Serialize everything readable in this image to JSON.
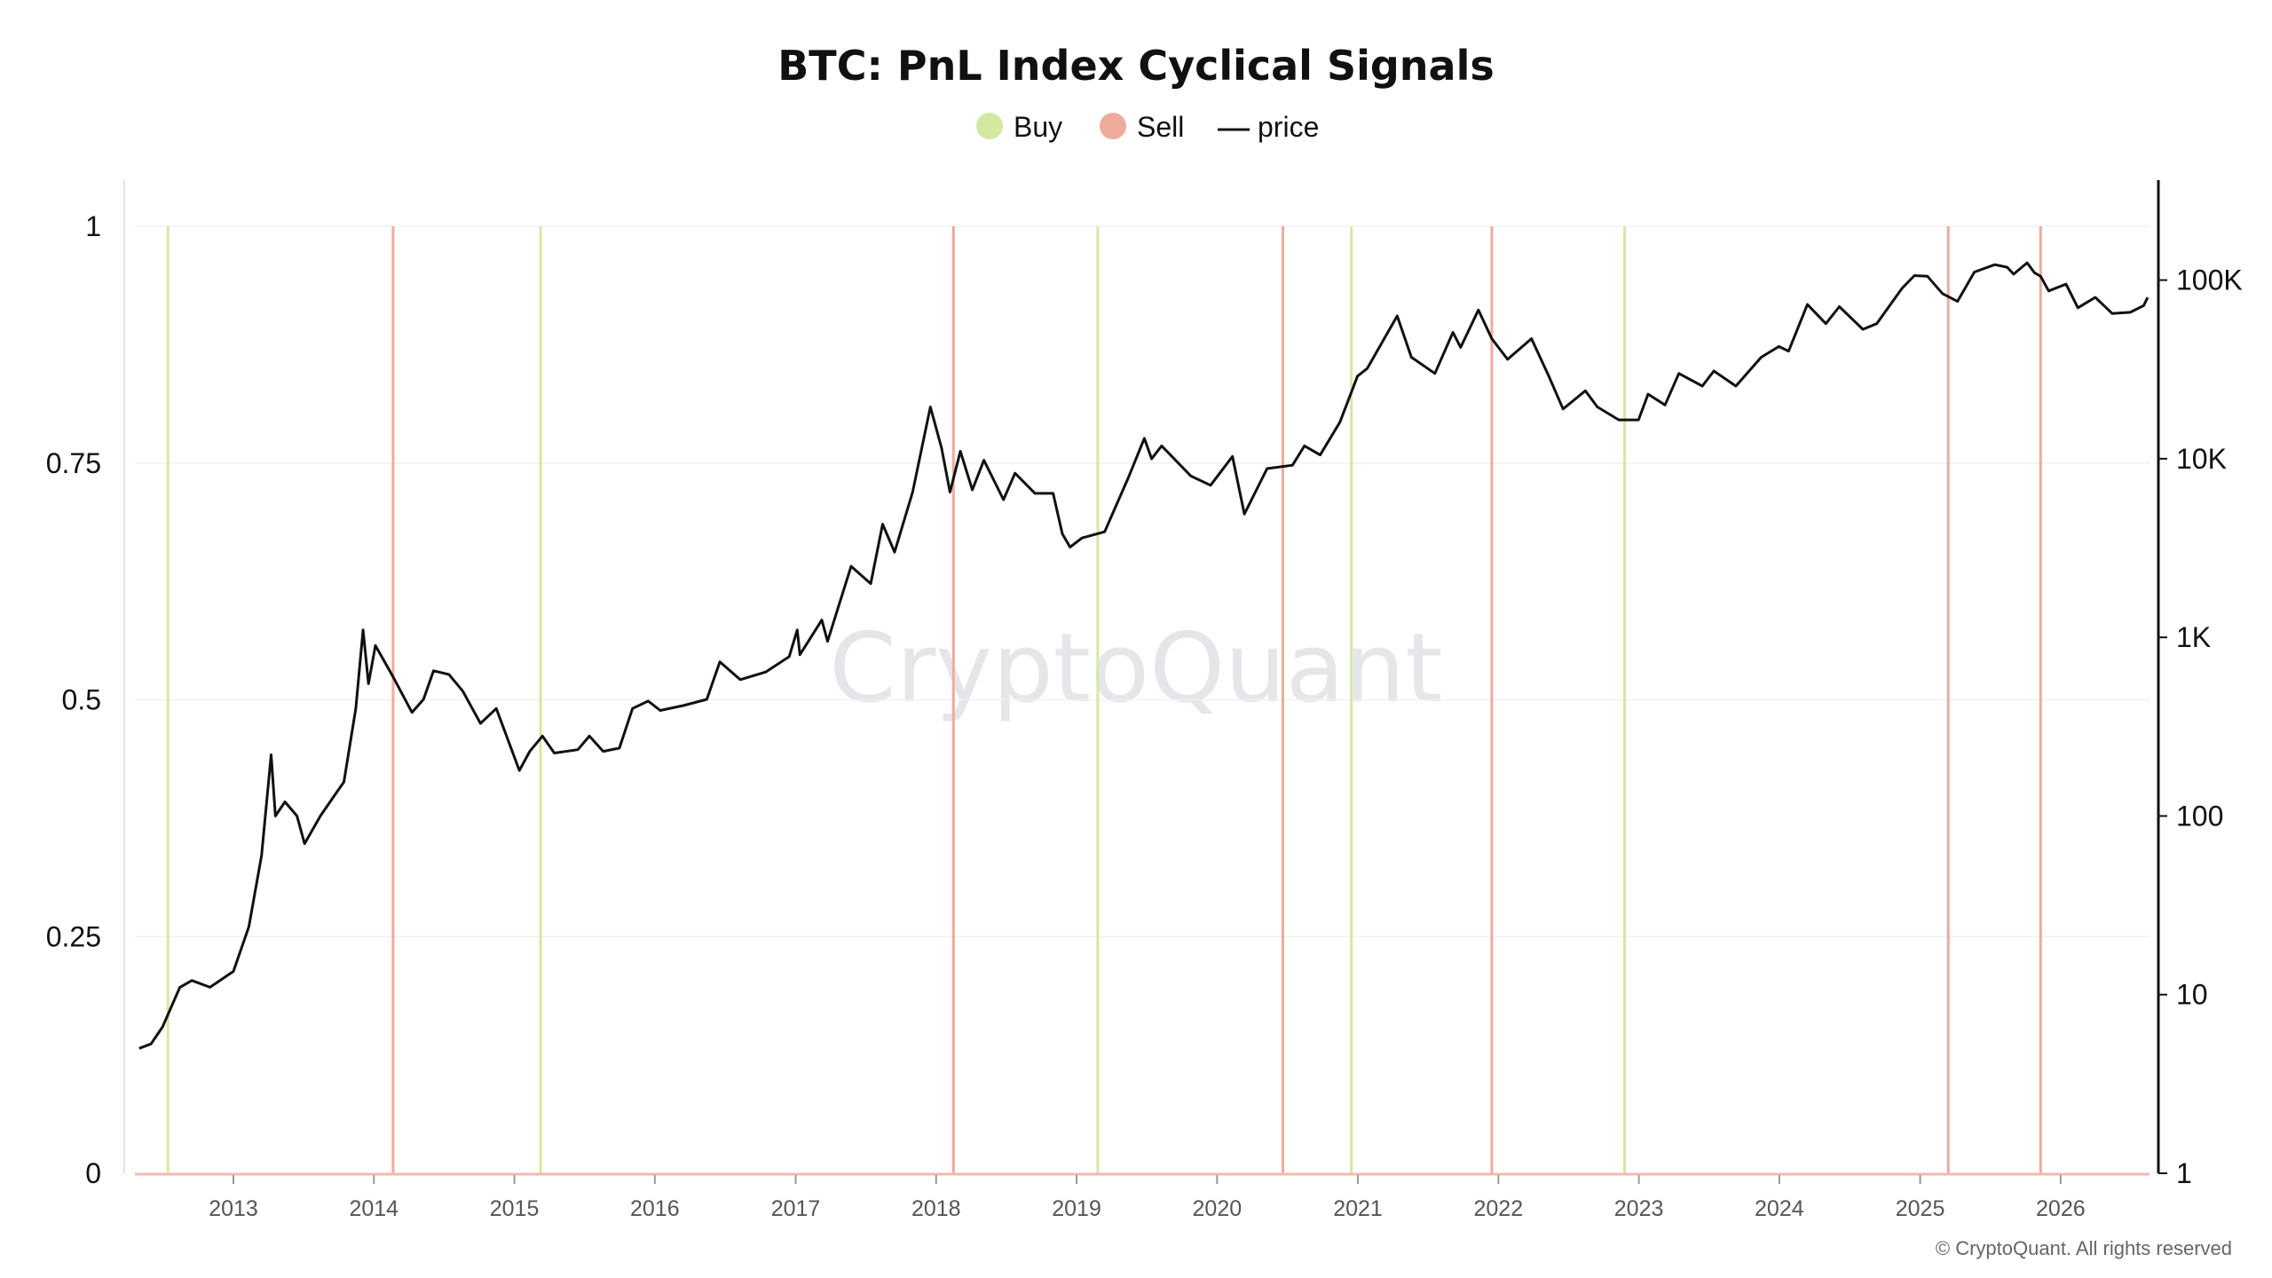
{
  "chart_data": {
    "type": "line",
    "title": "BTC: PnL Index Cyclical Signals",
    "watermark": "CryptoQuant",
    "copyright": "© CryptoQuant. All rights reserved",
    "legend": [
      {
        "key": "buy",
        "label": "Buy",
        "marker": "dot",
        "color": "#d4e8a2"
      },
      {
        "key": "sell",
        "label": "Sell",
        "marker": "dot",
        "color": "#f0aa9c"
      },
      {
        "key": "price",
        "label": "price",
        "marker": "line",
        "color": "#111111"
      }
    ],
    "legend_position": "top-center",
    "grid": true,
    "x_range": [
      "2012-04-20",
      "2026-08-20"
    ],
    "x_ticks": [
      "2013",
      "2014",
      "2015",
      "2016",
      "2017",
      "2018",
      "2019",
      "2020",
      "2021",
      "2022",
      "2023",
      "2024",
      "2025",
      "2026"
    ],
    "y_left": {
      "range": [
        0,
        1
      ],
      "ticks": [
        "1",
        "0.75",
        "0.5",
        "0.25",
        "0"
      ],
      "tick_values": [
        1,
        0.75,
        0.5,
        0.25,
        0
      ]
    },
    "y_right": {
      "scale": "log",
      "range": [
        1,
        200000
      ],
      "ticks": [
        "100K",
        "10K",
        "1K",
        "100",
        "10",
        "1"
      ],
      "tick_values": [
        100000,
        10000,
        1000,
        100,
        10,
        1
      ]
    },
    "buy_signals": [
      "2012-07-15",
      "2015-03-10",
      "2019-02-25",
      "2020-12-15",
      "2022-11-25"
    ],
    "sell_signals": [
      "2014-02-20",
      "2018-02-15",
      "2020-06-20",
      "2021-12-15",
      "2025-03-15",
      "2025-11-10"
    ],
    "series": [
      {
        "name": "price",
        "color": "#111111",
        "points": [
          [
            "2012-05-01",
            5
          ],
          [
            "2012-06-01",
            5.3
          ],
          [
            "2012-07-01",
            6.6
          ],
          [
            "2012-08-15",
            11
          ],
          [
            "2012-09-15",
            12
          ],
          [
            "2012-11-01",
            11
          ],
          [
            "2013-01-01",
            13.5
          ],
          [
            "2013-02-10",
            24
          ],
          [
            "2013-03-15",
            60
          ],
          [
            "2013-04-09",
            220
          ],
          [
            "2013-04-20",
            100
          ],
          [
            "2013-05-15",
            120
          ],
          [
            "2013-06-15",
            100
          ],
          [
            "2013-07-05",
            70
          ],
          [
            "2013-08-15",
            100
          ],
          [
            "2013-09-15",
            125
          ],
          [
            "2013-10-15",
            155
          ],
          [
            "2013-11-15",
            400
          ],
          [
            "2013-12-04",
            1100
          ],
          [
            "2013-12-18",
            550
          ],
          [
            "2014-01-05",
            900
          ],
          [
            "2014-02-20",
            600
          ],
          [
            "2014-04-10",
            380
          ],
          [
            "2014-05-10",
            450
          ],
          [
            "2014-06-05",
            650
          ],
          [
            "2014-07-15",
            620
          ],
          [
            "2014-08-20",
            500
          ],
          [
            "2014-10-05",
            330
          ],
          [
            "2014-11-15",
            400
          ],
          [
            "2015-01-14",
            180
          ],
          [
            "2015-02-10",
            230
          ],
          [
            "2015-03-15",
            280
          ],
          [
            "2015-04-15",
            225
          ],
          [
            "2015-06-15",
            235
          ],
          [
            "2015-07-15",
            280
          ],
          [
            "2015-08-20",
            230
          ],
          [
            "2015-10-01",
            240
          ],
          [
            "2015-11-04",
            400
          ],
          [
            "2015-12-15",
            440
          ],
          [
            "2016-01-15",
            390
          ],
          [
            "2016-03-15",
            415
          ],
          [
            "2016-05-15",
            450
          ],
          [
            "2016-06-18",
            730
          ],
          [
            "2016-08-10",
            580
          ],
          [
            "2016-10-15",
            640
          ],
          [
            "2016-12-15",
            780
          ],
          [
            "2017-01-05",
            1100
          ],
          [
            "2017-01-12",
            800
          ],
          [
            "2017-03-10",
            1250
          ],
          [
            "2017-03-25",
            950
          ],
          [
            "2017-05-25",
            2500
          ],
          [
            "2017-07-15",
            2000
          ],
          [
            "2017-08-15",
            4300
          ],
          [
            "2017-09-15",
            3000
          ],
          [
            "2017-11-01",
            6500
          ],
          [
            "2017-12-17",
            19500
          ],
          [
            "2018-01-15",
            11500
          ],
          [
            "2018-02-06",
            6500
          ],
          [
            "2018-03-05",
            11000
          ],
          [
            "2018-04-05",
            6700
          ],
          [
            "2018-05-05",
            9800
          ],
          [
            "2018-06-25",
            5900
          ],
          [
            "2018-07-25",
            8300
          ],
          [
            "2018-09-15",
            6400
          ],
          [
            "2018-11-01",
            6400
          ],
          [
            "2018-11-25",
            3800
          ],
          [
            "2018-12-15",
            3200
          ],
          [
            "2019-01-15",
            3600
          ],
          [
            "2019-03-15",
            3900
          ],
          [
            "2019-05-15",
            7800
          ],
          [
            "2019-06-26",
            13000
          ],
          [
            "2019-07-15",
            10000
          ],
          [
            "2019-08-10",
            11800
          ],
          [
            "2019-10-25",
            8000
          ],
          [
            "2019-12-15",
            7100
          ],
          [
            "2020-02-10",
            10300
          ],
          [
            "2020-03-12",
            4900
          ],
          [
            "2020-05-10",
            8800
          ],
          [
            "2020-07-15",
            9200
          ],
          [
            "2020-08-15",
            11800
          ],
          [
            "2020-09-25",
            10500
          ],
          [
            "2020-11-15",
            16000
          ],
          [
            "2020-12-31",
            29000
          ],
          [
            "2021-01-25",
            32000
          ],
          [
            "2021-04-13",
            63000
          ],
          [
            "2021-05-20",
            37000
          ],
          [
            "2021-07-20",
            30000
          ],
          [
            "2021-09-05",
            51000
          ],
          [
            "2021-09-25",
            42000
          ],
          [
            "2021-11-10",
            68000
          ],
          [
            "2021-12-15",
            47000
          ],
          [
            "2022-01-25",
            36000
          ],
          [
            "2022-03-28",
            47000
          ],
          [
            "2022-05-12",
            29000
          ],
          [
            "2022-06-18",
            19000
          ],
          [
            "2022-08-15",
            24000
          ],
          [
            "2022-09-15",
            19500
          ],
          [
            "2022-11-10",
            16500
          ],
          [
            "2022-12-31",
            16500
          ],
          [
            "2023-01-25",
            23000
          ],
          [
            "2023-03-10",
            20000
          ],
          [
            "2023-04-15",
            30000
          ],
          [
            "2023-06-15",
            25500
          ],
          [
            "2023-07-15",
            31000
          ],
          [
            "2023-09-10",
            25500
          ],
          [
            "2023-11-15",
            37000
          ],
          [
            "2023-12-31",
            42500
          ],
          [
            "2024-01-25",
            40000
          ],
          [
            "2024-03-14",
            73000
          ],
          [
            "2024-05-01",
            57000
          ],
          [
            "2024-06-05",
            71000
          ],
          [
            "2024-08-05",
            53000
          ],
          [
            "2024-09-10",
            57000
          ],
          [
            "2024-11-15",
            90000
          ],
          [
            "2024-12-17",
            106000
          ],
          [
            "2025-01-20",
            105000
          ],
          [
            "2025-02-28",
            84000
          ],
          [
            "2025-04-08",
            76000
          ],
          [
            "2025-05-22",
            111000
          ],
          [
            "2025-07-14",
            122000
          ],
          [
            "2025-08-15",
            118000
          ],
          [
            "2025-09-01",
            108000
          ],
          [
            "2025-10-06",
            125000
          ],
          [
            "2025-10-25",
            110000
          ],
          [
            "2025-11-10",
            105000
          ],
          [
            "2025-12-01",
            87000
          ],
          [
            "2026-01-15",
            95000
          ],
          [
            "2026-02-15",
            70000
          ],
          [
            "2026-04-01",
            80000
          ],
          [
            "2026-05-15",
            65000
          ],
          [
            "2026-07-01",
            66000
          ],
          [
            "2026-08-05",
            72000
          ],
          [
            "2026-08-15",
            80000
          ]
        ]
      }
    ]
  }
}
